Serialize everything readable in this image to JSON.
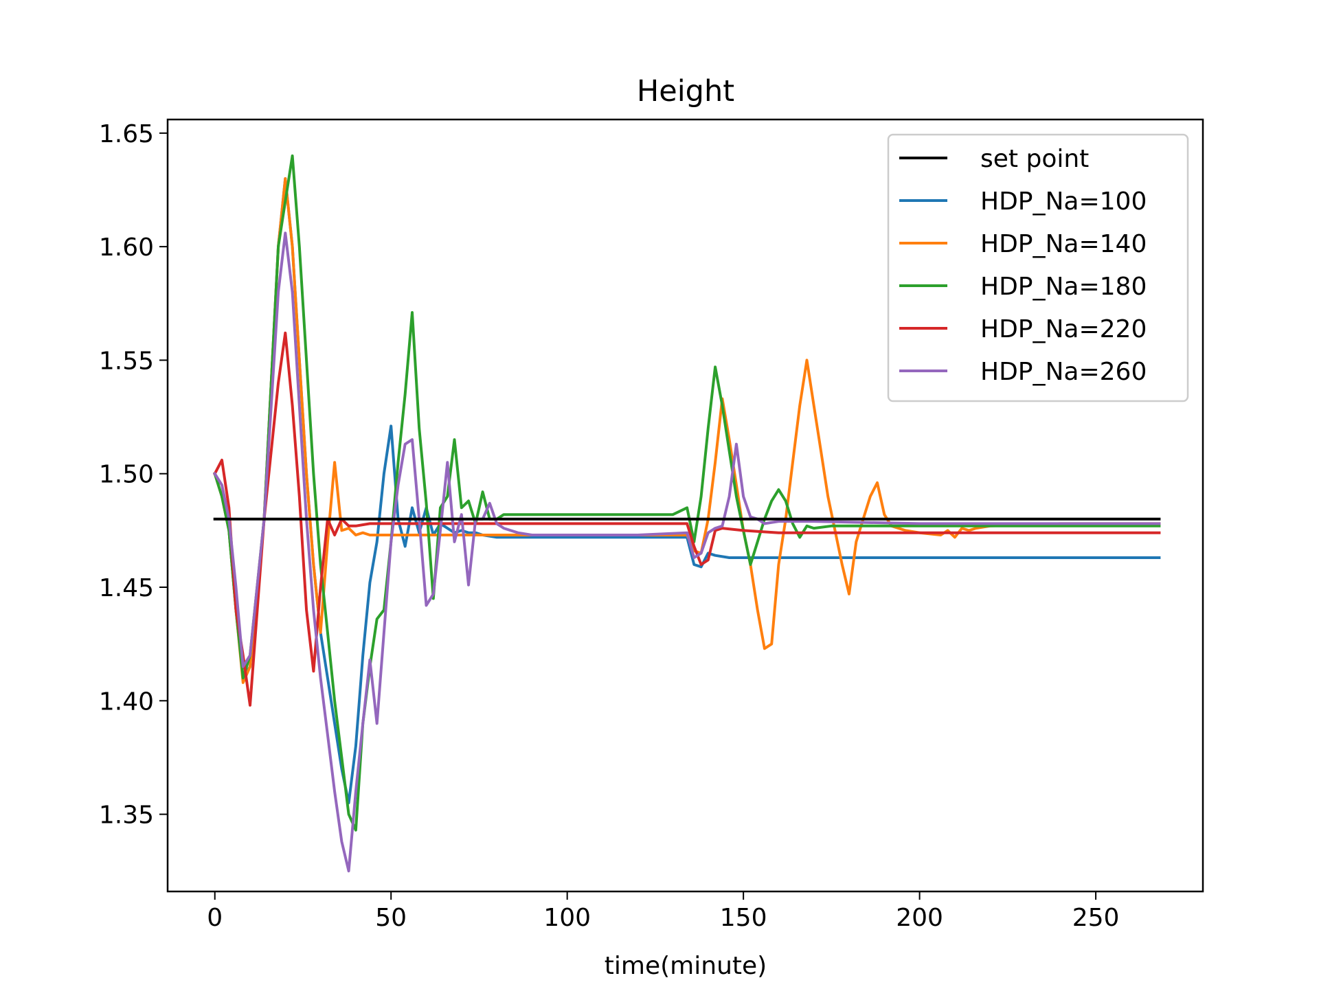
{
  "chart_data": {
    "type": "line",
    "title": "Height",
    "xlabel": "time(minute)",
    "ylabel": "",
    "xlim": [
      -13.4,
      280.4
    ],
    "ylim": [
      1.316,
      1.656
    ],
    "xticks": [
      0,
      50,
      100,
      150,
      200,
      250
    ],
    "xtick_labels": [
      "0",
      "50",
      "100",
      "150",
      "200",
      "250"
    ],
    "yticks": [
      1.35,
      1.4,
      1.45,
      1.5,
      1.55,
      1.6,
      1.65
    ],
    "ytick_labels": [
      "1.35",
      "1.40",
      "1.45",
      "1.50",
      "1.55",
      "1.60",
      "1.65"
    ],
    "grid": false,
    "legend_position": "top-right",
    "series": [
      {
        "name": "set point",
        "color": "#000000",
        "x": [
          0,
          268
        ],
        "y": [
          1.48,
          1.48
        ]
      },
      {
        "name": "HDP_Na=100",
        "color": "#1f77b4",
        "x": [
          0,
          2,
          4,
          6,
          8,
          10,
          14,
          18,
          20,
          22,
          24,
          26,
          28,
          30,
          32,
          34,
          36,
          38,
          40,
          42,
          44,
          46,
          48,
          50,
          52,
          54,
          56,
          58,
          60,
          62,
          64,
          66,
          68,
          70,
          72,
          74,
          76,
          80,
          90,
          100,
          110,
          120,
          130,
          134,
          136,
          138,
          140,
          142,
          146,
          150,
          160,
          180,
          200,
          220,
          240,
          268
        ],
        "y": [
          1.5,
          1.49,
          1.475,
          1.44,
          1.41,
          1.415,
          1.48,
          1.6,
          1.63,
          1.6,
          1.55,
          1.5,
          1.46,
          1.43,
          1.41,
          1.39,
          1.37,
          1.355,
          1.38,
          1.42,
          1.452,
          1.47,
          1.5,
          1.521,
          1.48,
          1.468,
          1.485,
          1.474,
          1.485,
          1.473,
          1.478,
          1.476,
          1.474,
          1.475,
          1.474,
          1.474,
          1.473,
          1.472,
          1.472,
          1.472,
          1.472,
          1.472,
          1.472,
          1.472,
          1.46,
          1.459,
          1.465,
          1.464,
          1.463,
          1.463,
          1.463,
          1.463,
          1.463,
          1.463,
          1.463,
          1.463
        ]
      },
      {
        "name": "HDP_Na=140",
        "color": "#ff7f0e",
        "x": [
          0,
          2,
          4,
          6,
          8,
          10,
          14,
          18,
          20,
          22,
          24,
          26,
          28,
          30,
          32,
          34,
          36,
          38,
          40,
          42,
          44,
          50,
          60,
          80,
          100,
          120,
          134,
          136,
          138,
          140,
          142,
          144,
          146,
          148,
          150,
          152,
          154,
          156,
          158,
          160,
          162,
          164,
          166,
          168,
          170,
          172,
          174,
          176,
          178,
          180,
          182,
          184,
          186,
          188,
          190,
          192,
          196,
          200,
          206,
          208,
          210,
          212,
          214,
          216,
          220,
          240,
          268
        ],
        "y": [
          1.5,
          1.49,
          1.475,
          1.44,
          1.408,
          1.415,
          1.48,
          1.6,
          1.63,
          1.6,
          1.55,
          1.5,
          1.46,
          1.43,
          1.47,
          1.505,
          1.475,
          1.476,
          1.473,
          1.474,
          1.473,
          1.473,
          1.473,
          1.473,
          1.473,
          1.473,
          1.473,
          1.466,
          1.465,
          1.48,
          1.505,
          1.533,
          1.515,
          1.495,
          1.475,
          1.46,
          1.44,
          1.423,
          1.425,
          1.46,
          1.48,
          1.505,
          1.53,
          1.55,
          1.53,
          1.51,
          1.49,
          1.475,
          1.46,
          1.447,
          1.47,
          1.48,
          1.49,
          1.496,
          1.482,
          1.477,
          1.475,
          1.474,
          1.473,
          1.475,
          1.472,
          1.476,
          1.475,
          1.476,
          1.477,
          1.478,
          1.478
        ]
      },
      {
        "name": "HDP_Na=180",
        "color": "#2ca02c",
        "x": [
          0,
          2,
          4,
          6,
          8,
          10,
          14,
          18,
          20,
          22,
          24,
          26,
          28,
          30,
          32,
          34,
          36,
          38,
          40,
          42,
          44,
          46,
          48,
          50,
          52,
          54,
          56,
          58,
          60,
          62,
          64,
          66,
          68,
          70,
          72,
          74,
          76,
          78,
          80,
          82,
          90,
          100,
          110,
          120,
          130,
          134,
          136,
          138,
          140,
          142,
          144,
          146,
          148,
          150,
          152,
          154,
          156,
          158,
          160,
          162,
          164,
          166,
          168,
          170,
          175,
          180,
          200,
          240,
          268
        ],
        "y": [
          1.5,
          1.49,
          1.475,
          1.44,
          1.41,
          1.42,
          1.48,
          1.6,
          1.62,
          1.64,
          1.6,
          1.55,
          1.5,
          1.46,
          1.43,
          1.4,
          1.375,
          1.35,
          1.343,
          1.39,
          1.415,
          1.436,
          1.44,
          1.47,
          1.505,
          1.535,
          1.571,
          1.52,
          1.487,
          1.445,
          1.485,
          1.49,
          1.515,
          1.485,
          1.488,
          1.478,
          1.492,
          1.48,
          1.48,
          1.482,
          1.482,
          1.482,
          1.482,
          1.482,
          1.482,
          1.485,
          1.47,
          1.49,
          1.52,
          1.547,
          1.53,
          1.51,
          1.49,
          1.475,
          1.46,
          1.47,
          1.48,
          1.488,
          1.493,
          1.488,
          1.478,
          1.472,
          1.477,
          1.476,
          1.477,
          1.477,
          1.477,
          1.477,
          1.477
        ]
      },
      {
        "name": "HDP_Na=220",
        "color": "#d62728",
        "x": [
          0,
          2,
          4,
          6,
          8,
          10,
          14,
          18,
          20,
          22,
          24,
          26,
          28,
          30,
          32,
          34,
          36,
          38,
          40,
          44,
          50,
          60,
          80,
          100,
          120,
          134,
          136,
          138,
          140,
          142,
          144,
          150,
          160,
          180,
          200,
          240,
          268
        ],
        "y": [
          1.5,
          1.506,
          1.485,
          1.44,
          1.42,
          1.398,
          1.48,
          1.54,
          1.562,
          1.53,
          1.49,
          1.44,
          1.413,
          1.45,
          1.48,
          1.473,
          1.48,
          1.477,
          1.477,
          1.478,
          1.478,
          1.478,
          1.478,
          1.478,
          1.478,
          1.478,
          1.468,
          1.46,
          1.462,
          1.475,
          1.476,
          1.475,
          1.474,
          1.474,
          1.474,
          1.474,
          1.474
        ]
      },
      {
        "name": "HDP_Na=260",
        "color": "#9467bd",
        "x": [
          0,
          2,
          4,
          6,
          8,
          10,
          14,
          18,
          20,
          22,
          24,
          26,
          28,
          30,
          32,
          34,
          36,
          38,
          40,
          42,
          44,
          46,
          48,
          50,
          52,
          54,
          56,
          58,
          60,
          62,
          64,
          66,
          68,
          70,
          72,
          74,
          76,
          78,
          80,
          82,
          86,
          90,
          100,
          120,
          134,
          136,
          138,
          140,
          142,
          144,
          146,
          148,
          150,
          152,
          154,
          156,
          160,
          170,
          200,
          240,
          268
        ],
        "y": [
          1.5,
          1.495,
          1.48,
          1.45,
          1.415,
          1.42,
          1.48,
          1.58,
          1.606,
          1.58,
          1.53,
          1.48,
          1.44,
          1.41,
          1.385,
          1.36,
          1.338,
          1.325,
          1.36,
          1.39,
          1.418,
          1.39,
          1.43,
          1.47,
          1.495,
          1.513,
          1.515,
          1.48,
          1.442,
          1.447,
          1.475,
          1.505,
          1.47,
          1.482,
          1.451,
          1.48,
          1.48,
          1.487,
          1.478,
          1.476,
          1.474,
          1.473,
          1.473,
          1.473,
          1.474,
          1.463,
          1.465,
          1.474,
          1.476,
          1.477,
          1.49,
          1.513,
          1.49,
          1.481,
          1.48,
          1.478,
          1.479,
          1.479,
          1.478,
          1.478,
          1.478
        ]
      }
    ]
  }
}
